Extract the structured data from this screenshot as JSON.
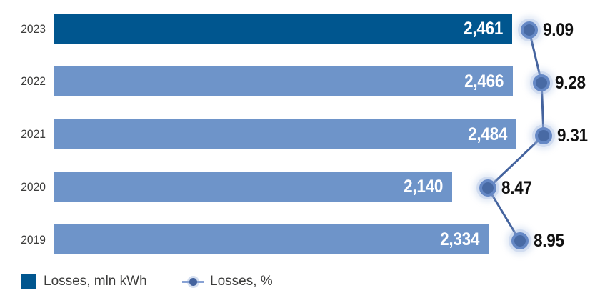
{
  "chart_data": {
    "type": "bar",
    "orientation": "horizontal",
    "title": "",
    "xlabel": "",
    "ylabel": "",
    "grid": false,
    "legend_position": "bottom",
    "categories": [
      "2023",
      "2022",
      "2021",
      "2020",
      "2019"
    ],
    "series": [
      {
        "name": "Losses, mln kWh",
        "type": "bar",
        "values": [
          2461,
          2466,
          2484,
          2140,
          2334
        ],
        "labels": [
          "2,461",
          "2,466",
          "2,484",
          "2,140",
          "2,334"
        ]
      },
      {
        "name": "Losses, %",
        "type": "line",
        "values": [
          9.09,
          9.28,
          9.31,
          8.47,
          8.95
        ],
        "labels": [
          "9.09",
          "9.28",
          "9.31",
          "8.47",
          "8.95"
        ]
      }
    ],
    "bar_axis_min": 0
  },
  "legend": {
    "bar_label": "Losses, mln kWh",
    "line_label": "Losses, %"
  },
  "colors": {
    "bar_highlight": "#00568F",
    "bar_regular": "#6E94C9",
    "line": "#44639E",
    "marker_fill": "#486AA4",
    "marker_ring": "#6588C5",
    "marker_halo": "#9EB7E0",
    "bar_value_text": "#FFFFFF",
    "pct_value_text": "#111111",
    "year_text": "#3C3C3B",
    "legend_text": "#3C3C3B",
    "legend_line": "#88A2D4"
  }
}
